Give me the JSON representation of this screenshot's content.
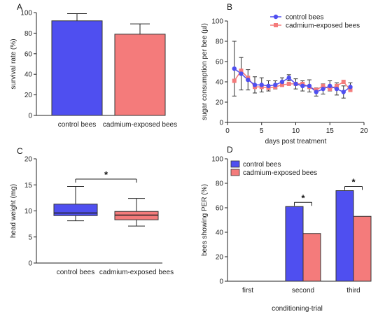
{
  "colors": {
    "control": "#4f4ff0",
    "cadmium": "#f47b7b",
    "axis": "#222222"
  },
  "chart_data": [
    {
      "panel": "A",
      "type": "bar",
      "categories": [
        "control bees",
        "cadmium-exposed bees"
      ],
      "values": [
        92,
        79
      ],
      "errors": [
        7,
        10
      ],
      "ylabel": "survival rate (%)",
      "ylim": [
        0,
        100
      ],
      "yticks": [
        0,
        20,
        40,
        60,
        80,
        100
      ]
    },
    {
      "panel": "B",
      "type": "line",
      "xlabel": "days post treatment",
      "ylabel": "sugar consumption per bee (µl)",
      "xlim": [
        0,
        20
      ],
      "ylim": [
        0,
        100
      ],
      "xticks": [
        0,
        5,
        10,
        15,
        20
      ],
      "yticks": [
        0,
        20,
        40,
        60,
        80,
        100
      ],
      "legend": "top-right",
      "x": [
        1,
        2,
        3,
        4,
        5,
        6,
        7,
        8,
        9,
        10,
        11,
        12,
        13,
        14,
        15,
        16,
        17,
        18
      ],
      "series": [
        {
          "name": "control bees",
          "values": [
            53,
            48,
            42,
            37,
            37,
            36,
            37,
            40,
            44,
            38,
            36,
            36,
            30,
            33,
            36,
            33,
            30,
            35
          ],
          "errors": [
            27,
            16,
            10,
            8,
            7,
            5,
            4,
            4,
            3,
            5,
            5,
            6,
            4,
            5,
            5,
            6,
            6,
            4
          ]
        },
        {
          "name": "cadmium-exposed bees",
          "values": [
            41,
            51,
            44,
            35,
            35,
            34,
            35,
            37,
            38,
            38,
            38,
            35,
            32,
            36,
            33,
            36,
            40,
            32
          ]
        }
      ]
    },
    {
      "panel": "C",
      "type": "box",
      "categories": [
        "control bees",
        "cadmium-exposed bees"
      ],
      "ylabel": "head weight (mg)",
      "ylim": [
        0,
        20
      ],
      "yticks": [
        0,
        5,
        10,
        15,
        20
      ],
      "boxes": [
        {
          "min": 8.1,
          "q1": 9.1,
          "median": 9.6,
          "q3": 11.3,
          "max": 14.7
        },
        {
          "min": 7.1,
          "q1": 8.3,
          "median": 9.2,
          "q3": 9.9,
          "max": 12.4
        }
      ],
      "significance": "*"
    },
    {
      "panel": "D",
      "type": "bar",
      "categories": [
        "first",
        "second",
        "third"
      ],
      "xlabel": "conditioning-trial",
      "ylabel": "bees showing PER (%)",
      "ylim": [
        0,
        100
      ],
      "yticks": [
        0,
        20,
        40,
        60,
        80,
        100
      ],
      "legend": "top-left",
      "series": [
        {
          "name": "control bees",
          "values": [
            0,
            61,
            74
          ]
        },
        {
          "name": "cadmium-exposed bees",
          "values": [
            0,
            39,
            53
          ]
        }
      ],
      "significance": [
        "",
        "*",
        "*"
      ]
    }
  ]
}
